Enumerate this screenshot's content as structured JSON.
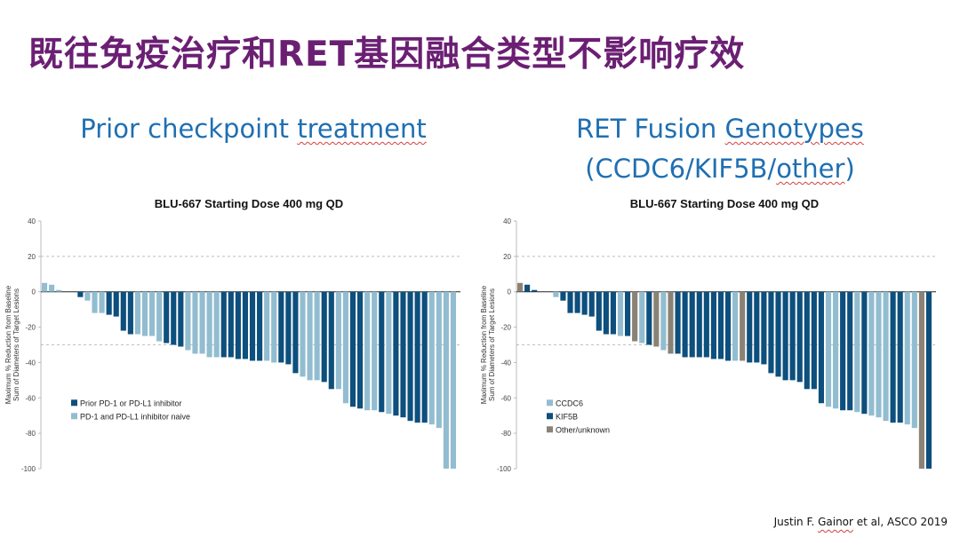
{
  "slide": {
    "title": "既往免疫治疗和RET基因融合类型不影响疗效",
    "left_heading": {
      "w1": "Prior",
      "w2": "checkpoint",
      "w3": "treatment"
    },
    "right_heading": {
      "w1": "RET",
      "w2": "Fusion",
      "w3": "Genotypes"
    },
    "right_subheading": {
      "pre": "(CCDC6/KIF5B/",
      "sq": "other",
      "post": ")"
    },
    "citation": {
      "a": "Justin F. ",
      "b": "Gainor",
      "c": " et al, ASCO 2019"
    }
  },
  "colors": {
    "title": "#6b1f73",
    "heading": "#1f6fb2",
    "dark_blue": "#0d4f7d",
    "light_blue": "#92bdd0",
    "gray": "#8b8276"
  },
  "chart_data": [
    {
      "type": "bar",
      "title": "BLU-667 Starting Dose 400 mg QD",
      "ylabel": "Maximum % Reduction from Baseline Sum of Diameters of Target Lesions",
      "ylabel_lines": [
        "Maximum % Reduction from Baseline",
        "Sum of Diameters of Target Lesions"
      ],
      "ylim": [
        -100,
        40
      ],
      "yticks": [
        40,
        20,
        0,
        -20,
        -40,
        -60,
        -80,
        -100
      ],
      "reference_lines": [
        20,
        -30
      ],
      "legend": [
        {
          "label": "Prior PD-1 or PD-L1 inhibitor",
          "color": "#0d4f7d"
        },
        {
          "label": "PD-1 and PD-L1 inhibitor naive",
          "color": "#92bdd0"
        }
      ],
      "legend_position": "lower-left",
      "values": [
        5,
        4,
        1,
        0,
        0,
        -3,
        -5,
        -12,
        -12,
        -13,
        -14,
        -22,
        -24,
        -24,
        -25,
        -25,
        -28,
        -29,
        -30,
        -31,
        -33,
        -35,
        -35,
        -37,
        -37,
        -37,
        -37,
        -38,
        -38,
        -39,
        -39,
        -39,
        -40,
        -40,
        -41,
        -46,
        -48,
        -50,
        -50,
        -51,
        -55,
        -55,
        -63,
        -65,
        -66,
        -67,
        -67,
        -68,
        -69,
        -70,
        -71,
        -73,
        -74,
        -74,
        -75,
        -77,
        -100,
        -100
      ],
      "groups": [
        1,
        1,
        1,
        1,
        0,
        0,
        1,
        1,
        1,
        0,
        0,
        0,
        0,
        1,
        1,
        1,
        1,
        0,
        0,
        0,
        1,
        1,
        1,
        1,
        1,
        0,
        0,
        0,
        0,
        0,
        0,
        1,
        1,
        0,
        0,
        0,
        1,
        1,
        1,
        0,
        0,
        1,
        1,
        0,
        0,
        1,
        1,
        0,
        1,
        0,
        0,
        0,
        0,
        0,
        1,
        1,
        1,
        1
      ]
    },
    {
      "type": "bar",
      "title": "BLU-667 Starting Dose 400 mg QD",
      "ylabel": "Maximum % Reduction from Baseline Sum of Diameters of Target Lesions",
      "ylabel_lines": [
        "Maximum % Reduction from Baseline",
        "Sum of Diameters of Target Lesions"
      ],
      "ylim": [
        -100,
        40
      ],
      "yticks": [
        40,
        20,
        0,
        -20,
        -40,
        -60,
        -80,
        -100
      ],
      "reference_lines": [
        20,
        -30
      ],
      "legend": [
        {
          "label": "CCDC6",
          "color": "#92bdd0"
        },
        {
          "label": "KIF5B",
          "color": "#0d4f7d"
        },
        {
          "label": "Other/unknown",
          "color": "#8b8276"
        }
      ],
      "legend_position": "lower-left",
      "values": [
        5,
        4,
        1,
        0,
        0,
        -3,
        -5,
        -12,
        -12,
        -13,
        -14,
        -22,
        -24,
        -24,
        -25,
        -25,
        -28,
        -29,
        -30,
        -31,
        -33,
        -35,
        -35,
        -37,
        -37,
        -37,
        -37,
        -38,
        -38,
        -39,
        -39,
        -39,
        -40,
        -40,
        -41,
        -46,
        -48,
        -50,
        -50,
        -51,
        -55,
        -55,
        -63,
        -65,
        -66,
        -67,
        -67,
        -68,
        -69,
        -70,
        -71,
        -73,
        -74,
        -74,
        -75,
        -77,
        -100,
        -100
      ],
      "groups": [
        2,
        1,
        1,
        0,
        0,
        0,
        1,
        1,
        1,
        1,
        1,
        1,
        1,
        1,
        0,
        1,
        2,
        0,
        1,
        2,
        0,
        2,
        1,
        1,
        1,
        1,
        1,
        1,
        1,
        1,
        0,
        2,
        1,
        1,
        1,
        1,
        1,
        1,
        1,
        1,
        1,
        1,
        1,
        0,
        0,
        1,
        1,
        0,
        1,
        0,
        0,
        0,
        1,
        1,
        0,
        0,
        2,
        1
      ]
    }
  ]
}
